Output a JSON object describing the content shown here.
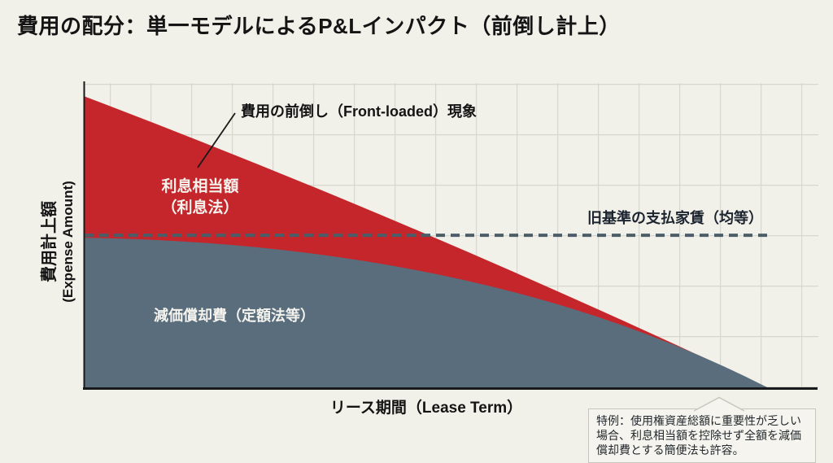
{
  "page": {
    "title": "費用の配分：単一モデルによるP&Lインパクト（前倒し計上）"
  },
  "chart": {
    "y_axis_label_jp": "費用計上額",
    "y_axis_label_en": "(Expense Amount)",
    "x_axis_label": "リース期間（Lease Term）",
    "annotation_front_loaded": "費用の前倒し（Front-loaded）現象",
    "interest_label_line1": "利息相当額",
    "interest_label_line2": "（利息法）",
    "depreciation_label": "減価償却費（定額法等）",
    "old_standard_label": "旧基準の支払家賃（均等）"
  },
  "note": {
    "text": "特例：使用権資産総額に重要性が乏しい場合、利息相当額を控除せず全額を減価償却費とする簡便法も許容。"
  },
  "colors": {
    "background": "#f1f0e9",
    "interest_red": "#c5262b",
    "depreciation_slate": "#5a6d7d",
    "old_standard_dash": "#4d5d68",
    "grid": "#d8d7cf",
    "axis": "#17191b",
    "leader_line": "#1a1a1a",
    "area_label_text": "#f4f3ee"
  },
  "chart_data": {
    "type": "area",
    "title": "費用の配分：単一モデルによるP&Lインパクト（前倒し計上）",
    "xlabel": "リース期間（Lease Term）",
    "ylabel": "費用計上額 (Expense Amount)",
    "x_axis_type": "qualitative — lease term from start (0) to end (1), no tick labels shown",
    "y_axis_type": "qualitative — relative periodic expense amount, no tick labels shown",
    "x": [
      0,
      0.25,
      0.5,
      0.75,
      1
    ],
    "stacked": true,
    "grid": true,
    "legend": "inline area labels",
    "series": [
      {
        "name": "減価償却費（定額法等）",
        "type": "area",
        "color": "#5a6d7d",
        "values": [
          0.49,
          0.46,
          0.37,
          0.22,
          0
        ]
      },
      {
        "name": "利息相当額（利息法）",
        "type": "area",
        "stacked_on_previous": true,
        "color": "#c5262b",
        "values": [
          0.47,
          0.28,
          0.13,
          0.04,
          0
        ]
      },
      {
        "name": "旧基準の支払家賃（均等）",
        "type": "line",
        "style": "dashed",
        "color": "#4d5d68",
        "values": [
          0.5,
          0.5,
          0.5,
          0.5,
          0.5
        ]
      }
    ],
    "total_curve_bezier": {
      "p0": [
        0,
        0.957
      ],
      "p1": [
        0.5,
        0.531
      ],
      "p2": [
        1,
        0
      ]
    },
    "depreciation_curve_bezier": {
      "p0": [
        0,
        0.493
      ],
      "p1": [
        0.59,
        0.472
      ],
      "p2": [
        1,
        0
      ]
    },
    "old_standard_level": 0.501,
    "ylim": [
      0,
      1
    ]
  }
}
